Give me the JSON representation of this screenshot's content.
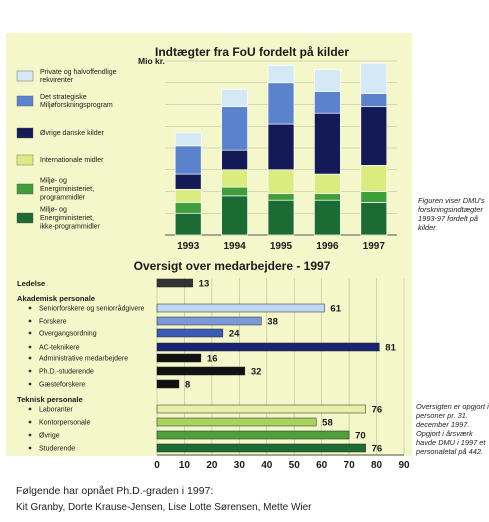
{
  "chart_data": [
    {
      "type": "bar",
      "stacked": true,
      "title": "Indtægter fra FoU fordelt på kilder",
      "ylabel": "Mio kr.",
      "ylim": [
        0,
        80
      ],
      "grid": true,
      "legend_position": "left",
      "categories": [
        "1993",
        "1994",
        "1995",
        "1996",
        "1997"
      ],
      "series": [
        {
          "name": "Miljø- og Energiministeriet, ikke-programmidler",
          "color": "#1c6b33",
          "values": [
            10,
            18,
            16,
            16,
            15
          ]
        },
        {
          "name": "Miljø- og Energiministeriet, programmidler",
          "color": "#3f9d3c",
          "values": [
            5,
            4,
            3,
            3,
            5
          ]
        },
        {
          "name": "Internationale midler",
          "color": "#dbec7e",
          "values": [
            6,
            8,
            11,
            9,
            12
          ]
        },
        {
          "name": "Øvrige danske kilder",
          "color": "#131a55",
          "values": [
            7,
            9,
            21,
            28,
            27
          ]
        },
        {
          "name": "Det strategiske Miljøforskningsprogram",
          "color": "#5b82cc",
          "values": [
            13,
            20,
            19,
            10,
            6
          ]
        },
        {
          "name": "Private og halvoffendlige rekvirenter",
          "color": "#d5e8f6",
          "values": [
            6,
            8,
            8,
            10,
            14
          ]
        }
      ],
      "legend_order": [
        5,
        4,
        3,
        2,
        1,
        0
      ]
    },
    {
      "type": "bar",
      "orientation": "horizontal",
      "title": "Oversigt over medarbejdere - 1997",
      "xlim": [
        0,
        90
      ],
      "grid": true,
      "xticks": [
        0,
        10,
        20,
        30,
        40,
        50,
        60,
        70,
        80,
        90
      ],
      "rows": [
        {
          "kind": "header",
          "label": "Ledelse",
          "value": 13,
          "color": "#333333"
        },
        {
          "kind": "header",
          "label": "Akademisk personale"
        },
        {
          "kind": "item",
          "label": "Seniorforskere og seniorrådgivere",
          "value": 61,
          "color": "#c0d6f2"
        },
        {
          "kind": "item",
          "label": "Forskere",
          "value": 38,
          "color": "#7d98d8"
        },
        {
          "kind": "item",
          "label": "Overgangsordning",
          "value": 24,
          "color": "#3d5ab4"
        },
        {
          "kind": "item",
          "label": "AC-teknikere",
          "value": 81,
          "color": "#1a2470"
        },
        {
          "kind": "item",
          "label": "Administrative medarbejdere",
          "value": 16,
          "color": "#111111"
        },
        {
          "kind": "item",
          "label": "Ph.D.-studerende",
          "value": 32,
          "color": "#111111"
        },
        {
          "kind": "item",
          "label": "Gæsteforskere",
          "value": 8,
          "color": "#111111"
        },
        {
          "kind": "header",
          "label": "Teknisk personale"
        },
        {
          "kind": "item",
          "label": "Laboranter",
          "value": 76,
          "color": "#e3f0a6"
        },
        {
          "kind": "item",
          "label": "Kontorpersonale",
          "value": 58,
          "color": "#a8d25e"
        },
        {
          "kind": "item",
          "label": "Øvrige",
          "value": 70,
          "color": "#4f9f3d"
        },
        {
          "kind": "item",
          "label": "Studerende",
          "value": 76,
          "color": "#1f6b31"
        }
      ]
    }
  ],
  "notes": {
    "revenue": "Figuren viser DMU's forskningsindtægter 1993-97 fordelt på kilder.",
    "staff": "Oversigten er opgjort i personer pr. 31. december 1997. Opgjort i årsværk havde DMU i 1997 et personaletal på 442."
  },
  "footer": {
    "heading": "Følgende har opnået Ph.D.-graden i 1997:",
    "names": "Kit Granby, Dorte Krause-Jensen, Lise Lotte Sørensen, Mette Wier"
  },
  "colors": {
    "panel_background": "#f3f7c9",
    "grid": "#b8b8a0"
  }
}
